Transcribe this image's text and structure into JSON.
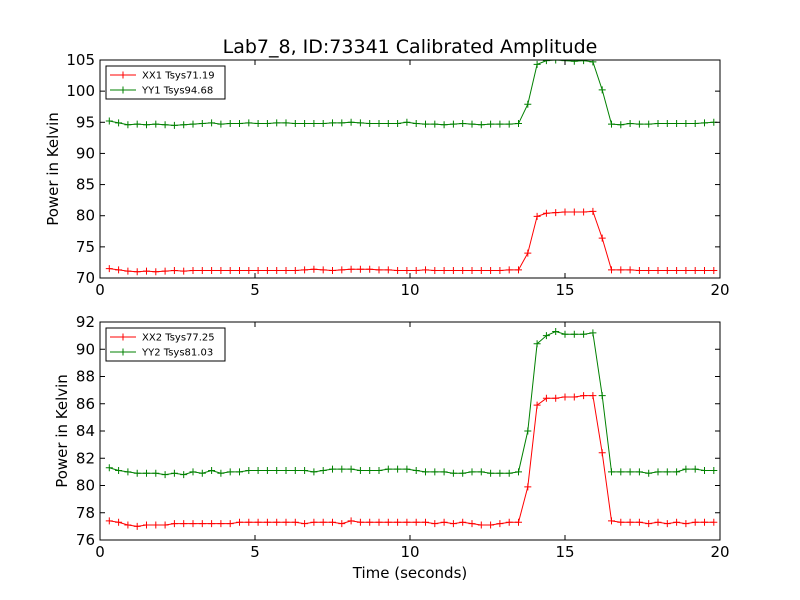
{
  "colors": {
    "red": "#ff0000",
    "green": "#008000"
  },
  "chart_data": [
    {
      "type": "line",
      "title": "Lab7_8, ID:73341 Calibrated Amplitude",
      "xlabel": "",
      "ylabel": "Power in Kelvin",
      "xlim": [
        0,
        20
      ],
      "ylim": [
        70,
        105
      ],
      "xticks": [
        0,
        5,
        10,
        15,
        20
      ],
      "yticks": [
        70,
        75,
        80,
        85,
        90,
        95,
        100,
        105
      ],
      "legend": "top-left",
      "x": [
        0.3,
        0.6,
        0.9,
        1.2,
        1.5,
        1.8,
        2.1,
        2.4,
        2.7,
        3.0,
        3.3,
        3.6,
        3.9,
        4.2,
        4.5,
        4.8,
        5.1,
        5.4,
        5.7,
        6.0,
        6.3,
        6.6,
        6.9,
        7.2,
        7.5,
        7.8,
        8.1,
        8.4,
        8.7,
        9.0,
        9.3,
        9.6,
        9.9,
        10.2,
        10.5,
        10.8,
        11.1,
        11.4,
        11.7,
        12.0,
        12.3,
        12.6,
        12.9,
        13.2,
        13.5,
        13.8,
        14.1,
        14.4,
        14.7,
        15.0,
        15.3,
        15.6,
        15.9,
        16.2,
        16.5,
        16.8,
        17.1,
        17.4,
        17.7,
        18.0,
        18.3,
        18.6,
        18.9,
        19.2,
        19.5,
        19.8
      ],
      "series": [
        {
          "name": "XX1 Tsys71.19",
          "color": "red",
          "values": [
            71.5,
            71.3,
            71.1,
            71.0,
            71.1,
            71.0,
            71.1,
            71.2,
            71.1,
            71.2,
            71.2,
            71.2,
            71.2,
            71.2,
            71.2,
            71.2,
            71.2,
            71.2,
            71.2,
            71.2,
            71.2,
            71.3,
            71.4,
            71.3,
            71.2,
            71.3,
            71.4,
            71.4,
            71.4,
            71.3,
            71.3,
            71.2,
            71.2,
            71.2,
            71.3,
            71.2,
            71.2,
            71.2,
            71.2,
            71.2,
            71.2,
            71.2,
            71.2,
            71.3,
            71.3,
            74.0,
            79.9,
            80.4,
            80.5,
            80.6,
            80.6,
            80.6,
            80.7,
            76.4,
            71.3,
            71.3,
            71.3,
            71.2,
            71.2,
            71.2,
            71.2,
            71.2,
            71.2,
            71.2,
            71.2,
            71.2
          ]
        },
        {
          "name": "YY1 Tsys94.68",
          "color": "green",
          "values": [
            95.2,
            94.9,
            94.6,
            94.7,
            94.6,
            94.7,
            94.6,
            94.5,
            94.6,
            94.7,
            94.8,
            94.9,
            94.7,
            94.8,
            94.8,
            94.9,
            94.8,
            94.8,
            94.9,
            94.9,
            94.8,
            94.8,
            94.8,
            94.8,
            94.9,
            94.9,
            95.0,
            94.9,
            94.8,
            94.8,
            94.8,
            94.8,
            95.0,
            94.8,
            94.7,
            94.7,
            94.6,
            94.7,
            94.8,
            94.7,
            94.6,
            94.7,
            94.7,
            94.7,
            94.8,
            97.9,
            104.3,
            104.9,
            105.0,
            104.9,
            104.8,
            104.9,
            104.7,
            100.2,
            94.7,
            94.6,
            94.8,
            94.7,
            94.7,
            94.8,
            94.8,
            94.8,
            94.8,
            94.8,
            94.9,
            95.0
          ]
        }
      ]
    },
    {
      "type": "line",
      "title": "",
      "xlabel": "Time (seconds)",
      "ylabel": "Power in Kelvin",
      "xlim": [
        0,
        20
      ],
      "ylim": [
        76,
        92
      ],
      "xticks": [
        0,
        5,
        10,
        15,
        20
      ],
      "yticks": [
        76,
        78,
        80,
        82,
        84,
        86,
        88,
        90,
        92
      ],
      "legend": "top-left",
      "x": [
        0.3,
        0.6,
        0.9,
        1.2,
        1.5,
        1.8,
        2.1,
        2.4,
        2.7,
        3.0,
        3.3,
        3.6,
        3.9,
        4.2,
        4.5,
        4.8,
        5.1,
        5.4,
        5.7,
        6.0,
        6.3,
        6.6,
        6.9,
        7.2,
        7.5,
        7.8,
        8.1,
        8.4,
        8.7,
        9.0,
        9.3,
        9.6,
        9.9,
        10.2,
        10.5,
        10.8,
        11.1,
        11.4,
        11.7,
        12.0,
        12.3,
        12.6,
        12.9,
        13.2,
        13.5,
        13.8,
        14.1,
        14.4,
        14.7,
        15.0,
        15.3,
        15.6,
        15.9,
        16.2,
        16.5,
        16.8,
        17.1,
        17.4,
        17.7,
        18.0,
        18.3,
        18.6,
        18.9,
        19.2,
        19.5,
        19.8
      ],
      "series": [
        {
          "name": "XX2 Tsys77.25",
          "color": "red",
          "values": [
            77.4,
            77.3,
            77.1,
            77.0,
            77.1,
            77.1,
            77.1,
            77.2,
            77.2,
            77.2,
            77.2,
            77.2,
            77.2,
            77.2,
            77.3,
            77.3,
            77.3,
            77.3,
            77.3,
            77.3,
            77.3,
            77.2,
            77.3,
            77.3,
            77.3,
            77.2,
            77.4,
            77.3,
            77.3,
            77.3,
            77.3,
            77.3,
            77.3,
            77.3,
            77.3,
            77.2,
            77.3,
            77.2,
            77.3,
            77.2,
            77.1,
            77.1,
            77.2,
            77.3,
            77.3,
            79.9,
            85.9,
            86.4,
            86.4,
            86.5,
            86.5,
            86.6,
            86.6,
            82.4,
            77.4,
            77.3,
            77.3,
            77.3,
            77.2,
            77.3,
            77.2,
            77.3,
            77.2,
            77.3,
            77.3,
            77.3
          ]
        },
        {
          "name": "YY2 Tsys81.03",
          "color": "green",
          "values": [
            81.3,
            81.1,
            81.0,
            80.9,
            80.9,
            80.9,
            80.8,
            80.9,
            80.8,
            81.0,
            80.9,
            81.1,
            80.9,
            81.0,
            81.0,
            81.1,
            81.1,
            81.1,
            81.1,
            81.1,
            81.1,
            81.1,
            81.0,
            81.1,
            81.2,
            81.2,
            81.2,
            81.1,
            81.1,
            81.1,
            81.2,
            81.2,
            81.2,
            81.1,
            81.0,
            81.0,
            81.0,
            80.9,
            80.9,
            81.0,
            81.0,
            80.9,
            80.9,
            80.9,
            81.0,
            84.0,
            90.4,
            91.0,
            91.3,
            91.1,
            91.1,
            91.1,
            91.2,
            86.6,
            81.0,
            81.0,
            81.0,
            81.0,
            80.9,
            81.0,
            81.0,
            81.0,
            81.2,
            81.2,
            81.1,
            81.1
          ]
        }
      ]
    }
  ]
}
